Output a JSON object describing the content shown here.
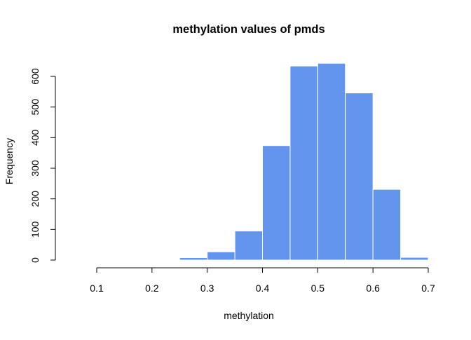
{
  "chart_data": {
    "type": "bar",
    "title": "methylation values of pmds",
    "xlabel": "methylation",
    "ylabel": "Frequency",
    "bins": [
      {
        "start": 0.25,
        "end": 0.3,
        "count": 8
      },
      {
        "start": 0.3,
        "end": 0.35,
        "count": 27
      },
      {
        "start": 0.35,
        "end": 0.4,
        "count": 95
      },
      {
        "start": 0.4,
        "end": 0.45,
        "count": 374
      },
      {
        "start": 0.45,
        "end": 0.5,
        "count": 634
      },
      {
        "start": 0.5,
        "end": 0.55,
        "count": 643
      },
      {
        "start": 0.55,
        "end": 0.6,
        "count": 546
      },
      {
        "start": 0.6,
        "end": 0.65,
        "count": 231
      },
      {
        "start": 0.65,
        "end": 0.7,
        "count": 9
      }
    ],
    "xlim": [
      0.1,
      0.7
    ],
    "ylim": [
      0,
      600
    ],
    "xticks": [
      "0.1",
      "0.2",
      "0.3",
      "0.4",
      "0.5",
      "0.6",
      "0.7"
    ],
    "yticks": [
      "0",
      "100",
      "200",
      "300",
      "400",
      "500",
      "600"
    ],
    "grid": false,
    "colors": {
      "bar_fill": "#6495ed",
      "bar_edge": "#ffffff",
      "axis": "#000000"
    }
  }
}
